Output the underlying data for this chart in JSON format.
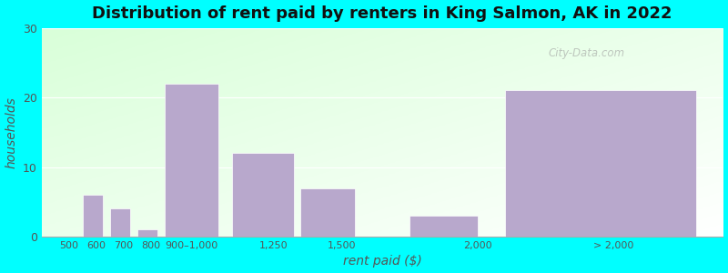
{
  "title": "Distribution of rent paid by renters in King Salmon, AK in 2022",
  "xlabel": "rent paid ($)",
  "ylabel": "households",
  "bar_color": "#b8a8cc",
  "outer_background": "#00ffff",
  "categories": [
    "500",
    "600",
    "700",
    "800",
    "900–1,000",
    "1,250",
    "1,500",
    "2,000",
    "> 2,000"
  ],
  "values": [
    0,
    6,
    4,
    1,
    22,
    12,
    7,
    3,
    21
  ],
  "bar_lefts": [
    400,
    550,
    650,
    750,
    850,
    1100,
    1350,
    1750,
    2100
  ],
  "bar_widths": [
    100,
    75,
    75,
    75,
    200,
    225,
    200,
    250,
    700
  ],
  "xlim": [
    400,
    2900
  ],
  "xtick_positions": [
    500,
    600,
    700,
    800,
    950,
    1250,
    1500,
    2000,
    2500
  ],
  "xtick_labels": [
    "500",
    "600",
    "700",
    "800",
    "900–1,000",
    "1,250",
    "1,500",
    "2,000",
    "> 2,000"
  ],
  "ylim": [
    0,
    30
  ],
  "yticks": [
    0,
    10,
    20,
    30
  ],
  "title_fontsize": 13,
  "axis_label_fontsize": 10,
  "watermark": "City-Data.com"
}
